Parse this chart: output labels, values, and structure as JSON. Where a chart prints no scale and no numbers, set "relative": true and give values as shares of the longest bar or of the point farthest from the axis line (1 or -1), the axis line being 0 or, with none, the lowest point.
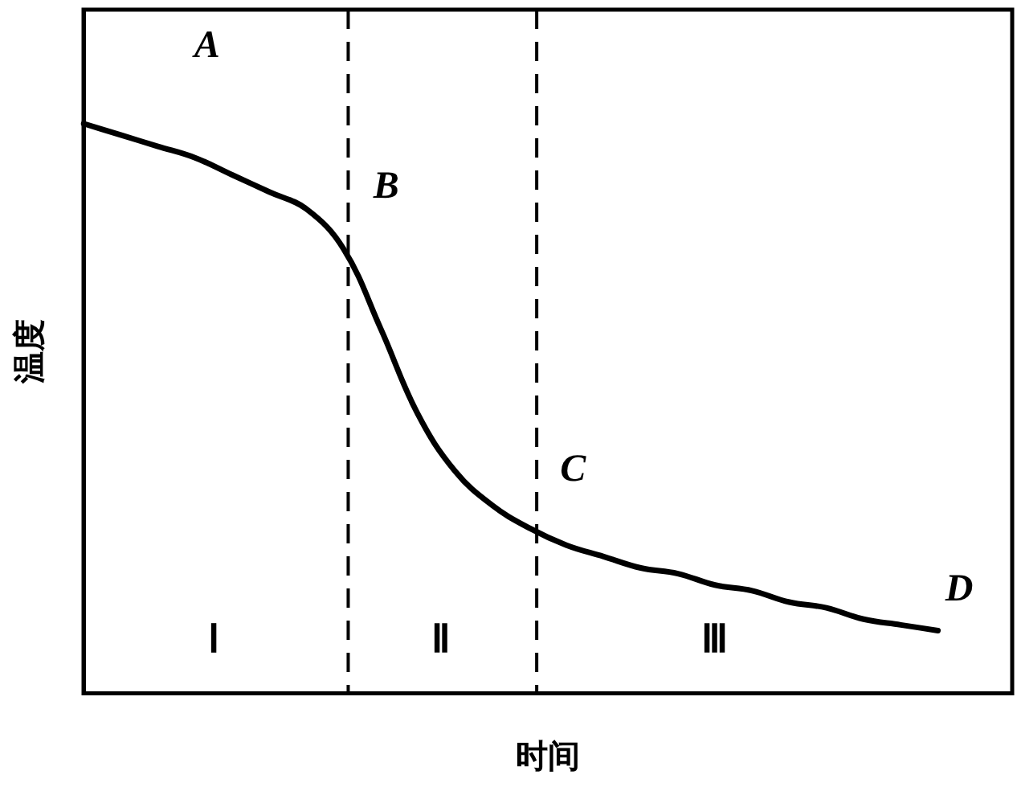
{
  "chart_data": {
    "type": "line",
    "relative": true,
    "xlabel": "时间",
    "ylabel": "温度",
    "categories": [
      null,
      null,
      null,
      null,
      null,
      null,
      null,
      null,
      null,
      null,
      null,
      null,
      null,
      null,
      null,
      null,
      null,
      null,
      null,
      null,
      null,
      null,
      null,
      null,
      null,
      null
    ],
    "series": [
      {
        "color": "#000000",
        "values": [
          1,
          0.98,
          0.96,
          0.94,
          0.91,
          0.88,
          0.85,
          0.78,
          0.64,
          0.49,
          0.39,
          0.33,
          0.29,
          0.26,
          0.24,
          0.22,
          0.21,
          0.19,
          0.18,
          0.16,
          0.15,
          0.13,
          0.12,
          0.11,
          null,
          null
        ]
      }
    ],
    "annotations": [
      "A",
      "B",
      "C",
      "D",
      "Ⅰ",
      "Ⅱ",
      "Ⅲ"
    ],
    "grid": false,
    "legend": false,
    "marker": "none",
    "line_style": "solid"
  }
}
